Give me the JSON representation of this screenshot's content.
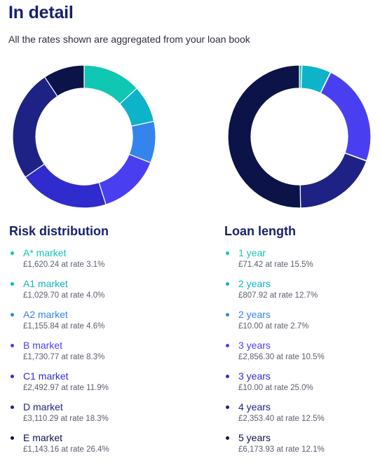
{
  "header": {
    "title": "In detail",
    "subtitle": "All the rates shown are aggregated from your loan book"
  },
  "risk": {
    "heading": "Risk distribution",
    "items": [
      {
        "label": "A* market",
        "detail": "£1,620.24 at rate 3.1%",
        "amount": 1620.24,
        "color": "#0fc7b2"
      },
      {
        "label": "A1 market",
        "detail": "£1,029.70 at rate 4.0%",
        "amount": 1029.7,
        "color": "#0db3c8"
      },
      {
        "label": "A2 market",
        "detail": "£1,155.84 at rate 4.6%",
        "amount": 1155.84,
        "color": "#3384ec"
      },
      {
        "label": "B market",
        "detail": "£1,730.77 at rate 8.3%",
        "amount": 1730.77,
        "color": "#4a3ff0"
      },
      {
        "label": "C1 market",
        "detail": "£2,492.97 at rate 11.9%",
        "amount": 2492.97,
        "color": "#2f2bcd"
      },
      {
        "label": "D market",
        "detail": "£3,110.29 at rate 18.3%",
        "amount": 3110.29,
        "color": "#1e2284"
      },
      {
        "label": "E market",
        "detail": "£1,143.16 at rate 26.4%",
        "amount": 1143.16,
        "color": "#0c1348"
      }
    ]
  },
  "loan": {
    "heading": "Loan length",
    "items": [
      {
        "label": "1 year",
        "detail": "£71.42 at rate 15.5%",
        "amount": 71.42,
        "color": "#0fc7b2"
      },
      {
        "label": "2 years",
        "detail": "£807.92 at rate 12.7%",
        "amount": 807.92,
        "color": "#0db3c8"
      },
      {
        "label": "2 years",
        "detail": "£10.00 at rate 2.7%",
        "amount": 10.0,
        "color": "#3384ec"
      },
      {
        "label": "3 years",
        "detail": "£2,856.30 at rate 10.5%",
        "amount": 2856.3,
        "color": "#4a3ff0"
      },
      {
        "label": "3 years",
        "detail": "£10.00 at rate 25.0%",
        "amount": 10.0,
        "color": "#2f2bcd"
      },
      {
        "label": "4 years",
        "detail": "£2,353.40 at rate 12.5%",
        "amount": 2353.4,
        "color": "#1e2284"
      },
      {
        "label": "5 years",
        "detail": "£6,173.93 at rate 12.1%",
        "amount": 6173.93,
        "color": "#0c1348"
      }
    ]
  }
}
